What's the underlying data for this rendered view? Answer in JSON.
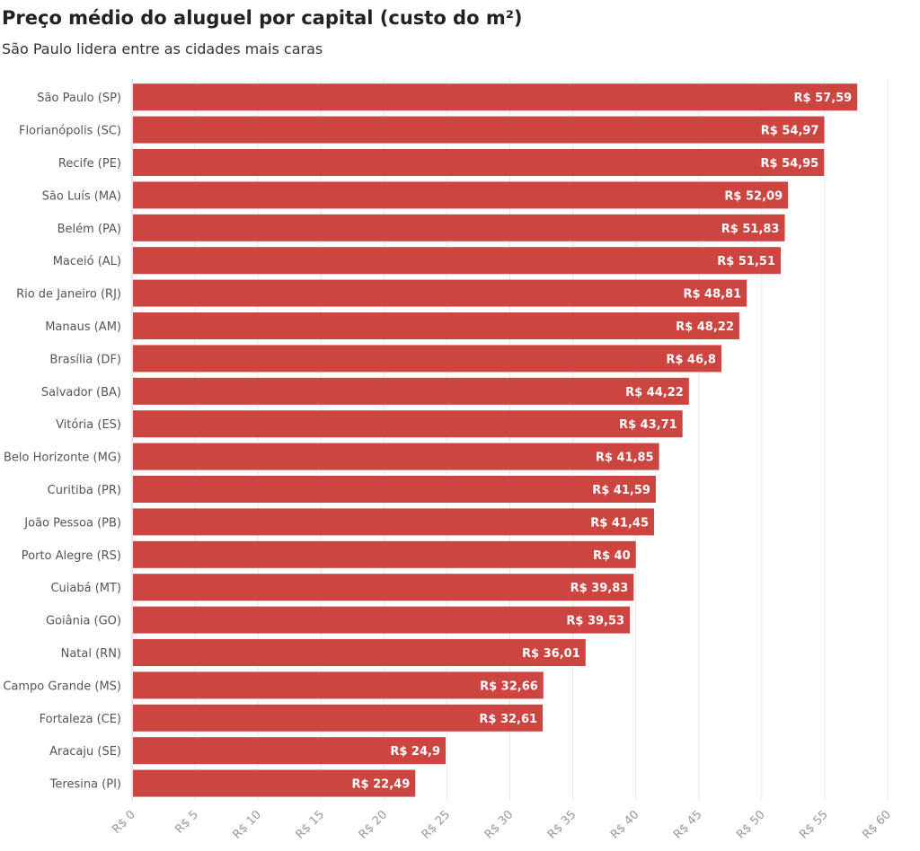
{
  "title": "Preço médio do aluguel por capital (custo do m²)",
  "subtitle": "São Paulo lidera entre as cidades mais caras",
  "colors": {
    "bar": "#cc4540",
    "grid": "#e8e8e8",
    "axis": "#cccccc"
  },
  "chart_data": {
    "type": "bar",
    "orientation": "horizontal",
    "categories": [
      "São Paulo (SP)",
      "Florianópolis (SC)",
      "Recife (PE)",
      "São Luís (MA)",
      "Belém (PA)",
      "Maceió (AL)",
      "Rio de Janeiro (RJ)",
      "Manaus (AM)",
      "Brasília (DF)",
      "Salvador (BA)",
      "Vitória (ES)",
      "Belo Horizonte (MG)",
      "Curitiba (PR)",
      "João Pessoa (PB)",
      "Porto Alegre (RS)",
      "Cuiabá (MT)",
      "Goiânia (GO)",
      "Natal (RN)",
      "Campo Grande (MS)",
      "Fortaleza (CE)",
      "Aracaju (SE)",
      "Teresina (PI)"
    ],
    "values": [
      57.59,
      54.97,
      54.95,
      52.09,
      51.83,
      51.51,
      48.81,
      48.22,
      46.8,
      44.22,
      43.71,
      41.85,
      41.59,
      41.45,
      40,
      39.83,
      39.53,
      36.01,
      32.66,
      32.61,
      24.9,
      22.49
    ],
    "data_labels": [
      "R$ 57,59",
      "R$ 54,97",
      "R$ 54,95",
      "R$ 52,09",
      "R$ 51,83",
      "R$ 51,51",
      "R$ 48,81",
      "R$ 48,22",
      "R$ 46,8",
      "R$ 44,22",
      "R$ 43,71",
      "R$ 41,85",
      "R$ 41,59",
      "R$ 41,45",
      "R$ 40",
      "R$ 39,83",
      "R$ 39,53",
      "R$ 36,01",
      "R$ 32,66",
      "R$ 32,61",
      "R$ 24,9",
      "R$ 22,49"
    ],
    "x_ticks": [
      0,
      5,
      10,
      15,
      20,
      25,
      30,
      35,
      40,
      45,
      50,
      55,
      60
    ],
    "x_tick_labels": [
      "R$ 0",
      "R$ 5",
      "R$ 10",
      "R$ 15",
      "R$ 20",
      "R$ 25",
      "R$ 30",
      "R$ 35",
      "R$ 40",
      "R$ 45",
      "R$ 50",
      "R$ 55",
      "R$ 60"
    ],
    "xlim": [
      0,
      60
    ],
    "grid": true,
    "legend": "none"
  }
}
